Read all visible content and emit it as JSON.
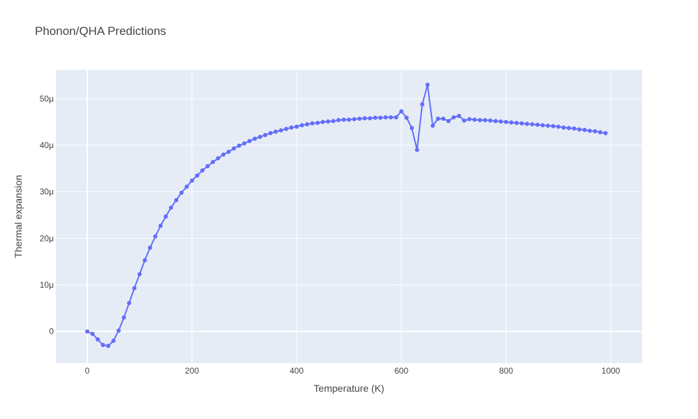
{
  "chart_data": {
    "type": "line",
    "title": "Phonon/QHA Predictions",
    "xlabel": "Temperature (K)",
    "ylabel": "Thermal expansion",
    "xlim": [
      -60,
      1060
    ],
    "ylim": [
      -6.8e-06,
      5.62e-05
    ],
    "x_ticks": [
      0,
      200,
      400,
      600,
      800,
      1000
    ],
    "x_tick_labels": [
      "0",
      "200",
      "400",
      "600",
      "800",
      "1000"
    ],
    "y_ticks": [
      0,
      1e-05,
      2e-05,
      3e-05,
      4e-05,
      5e-05
    ],
    "y_tick_labels": [
      "0",
      "10μ",
      "20μ",
      "30μ",
      "40μ",
      "50μ"
    ],
    "grid": true,
    "colors": {
      "plot_bg": "#e5ecf6",
      "grid": "#ffffff",
      "series": "#636efa",
      "text": "#444444"
    },
    "series": [
      {
        "mode": "lines+markers",
        "x": [
          0,
          10,
          20,
          30,
          40,
          50,
          60,
          70,
          80,
          90,
          100,
          110,
          120,
          130,
          140,
          150,
          160,
          170,
          180,
          190,
          200,
          210,
          220,
          230,
          240,
          250,
          260,
          270,
          280,
          290,
          300,
          310,
          320,
          330,
          340,
          350,
          360,
          370,
          380,
          390,
          400,
          410,
          420,
          430,
          440,
          450,
          460,
          470,
          480,
          490,
          500,
          510,
          520,
          530,
          540,
          550,
          560,
          570,
          580,
          590,
          600,
          610,
          620,
          630,
          640,
          650,
          660,
          670,
          680,
          690,
          700,
          710,
          720,
          730,
          740,
          750,
          760,
          770,
          780,
          790,
          800,
          810,
          820,
          830,
          840,
          850,
          860,
          870,
          880,
          890,
          900,
          910,
          920,
          930,
          940,
          950,
          960,
          970,
          980,
          990
        ],
        "y": [
          0,
          -5e-07,
          -1.7e-06,
          -2.9e-06,
          -3.1e-06,
          -2e-06,
          2e-07,
          3e-06,
          6.1e-06,
          9.3e-06,
          1.23e-05,
          1.53e-05,
          1.8e-05,
          2.04e-05,
          2.27e-05,
          2.47e-05,
          2.66e-05,
          2.82e-05,
          2.98e-05,
          3.11e-05,
          3.24e-05,
          3.35e-05,
          3.46e-05,
          3.55e-05,
          3.64e-05,
          3.72e-05,
          3.8e-05,
          3.86e-05,
          3.93e-05,
          3.99e-05,
          4.04e-05,
          4.09e-05,
          4.14e-05,
          4.18e-05,
          4.22e-05,
          4.26e-05,
          4.29e-05,
          4.32e-05,
          4.35e-05,
          4.38e-05,
          4.4e-05,
          4.43e-05,
          4.45e-05,
          4.47e-05,
          4.48e-05,
          4.5e-05,
          4.51e-05,
          4.52e-05,
          4.54e-05,
          4.55e-05,
          4.55e-05,
          4.56e-05,
          4.57e-05,
          4.58e-05,
          4.58e-05,
          4.59e-05,
          4.59e-05,
          4.6e-05,
          4.6e-05,
          4.6e-05,
          4.73e-05,
          4.59e-05,
          4.37e-05,
          3.9e-05,
          4.88e-05,
          5.3e-05,
          4.42e-05,
          4.57e-05,
          4.57e-05,
          4.52e-05,
          4.6e-05,
          4.63e-05,
          4.53e-05,
          4.56e-05,
          4.55e-05,
          4.54e-05,
          4.54e-05,
          4.53e-05,
          4.52e-05,
          4.51e-05,
          4.5e-05,
          4.49e-05,
          4.48e-05,
          4.47e-05,
          4.46e-05,
          4.45e-05,
          4.44e-05,
          4.43e-05,
          4.42e-05,
          4.41e-05,
          4.4e-05,
          4.38e-05,
          4.37e-05,
          4.36e-05,
          4.34e-05,
          4.33e-05,
          4.31e-05,
          4.3e-05,
          4.28e-05,
          4.26e-05
        ]
      }
    ]
  }
}
